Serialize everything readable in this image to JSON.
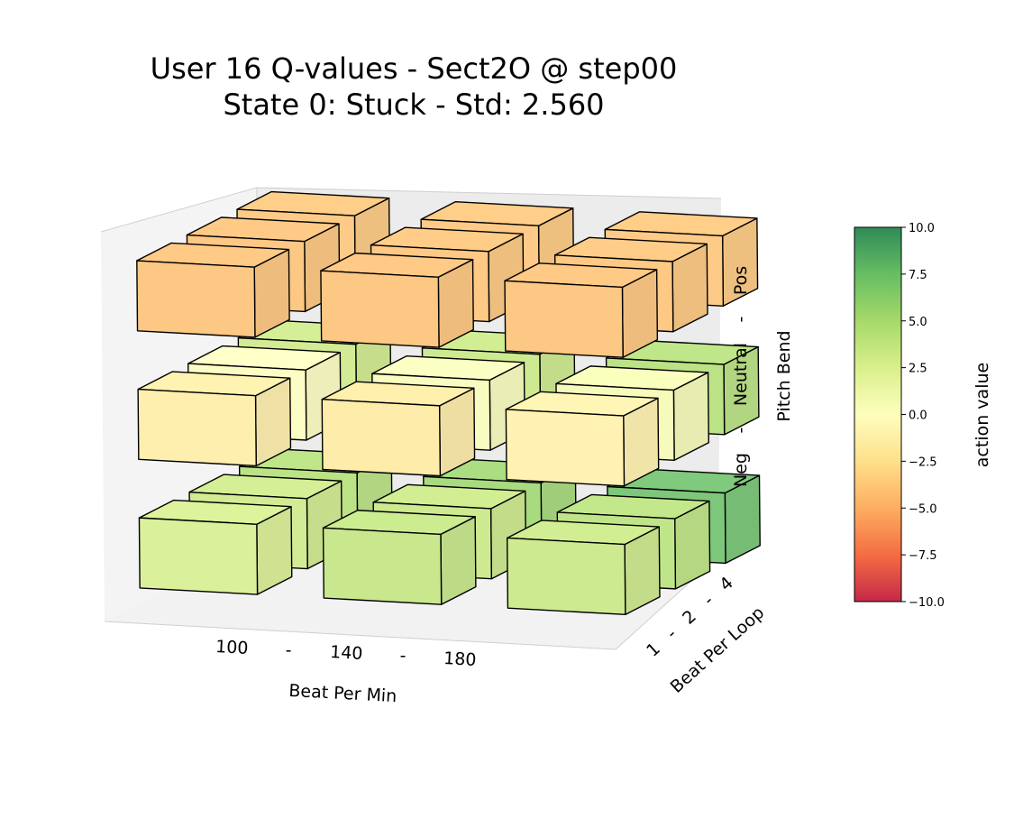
{
  "chart_data": {
    "type": "3d-bar",
    "title_line1": "User 16 Q-values  -  Sect2O @ step00",
    "title_line2": "State 0: Stuck  -  Std: 2.560",
    "xlabel": "Beat Per Min",
    "ylabel": "Beat Per Loop",
    "zlabel": "Pitch Bend",
    "x_ticks": [
      "100",
      "-",
      "140",
      "-",
      "180"
    ],
    "y_ticks": [
      "1",
      "-",
      "2",
      "-",
      "4"
    ],
    "z_ticks": [
      "Neg",
      "-",
      "Neutral",
      "-",
      "Pos"
    ],
    "x_categories": [
      "100",
      "140",
      "180"
    ],
    "y_categories": [
      "1",
      "2",
      "4"
    ],
    "z_categories": [
      "Neg",
      "Neutral",
      "Pos"
    ],
    "colorbar": {
      "label": "action value",
      "colormap": "RdYlGn",
      "range": [
        -10.0,
        10.0
      ],
      "ticks": [
        "10.0",
        "7.5",
        "5.0",
        "2.5",
        "0.0",
        "−2.5",
        "−5.0",
        "−7.5",
        "−10.0"
      ],
      "tick_values": [
        10.0,
        7.5,
        5.0,
        2.5,
        0.0,
        -2.5,
        -5.0,
        -7.5,
        -10.0
      ]
    },
    "cells": [
      {
        "bpm": "100",
        "bpl": "1",
        "pitch": "Neg",
        "value": 2.2
      },
      {
        "bpm": "100",
        "bpl": "2",
        "pitch": "Neg",
        "value": 2.6
      },
      {
        "bpm": "100",
        "bpl": "4",
        "pitch": "Neg",
        "value": 3.6
      },
      {
        "bpm": "140",
        "bpl": "1",
        "pitch": "Neg",
        "value": 3.0
      },
      {
        "bpm": "140",
        "bpl": "2",
        "pitch": "Neg",
        "value": 2.8
      },
      {
        "bpm": "140",
        "bpl": "4",
        "pitch": "Neg",
        "value": 4.4
      },
      {
        "bpm": "180",
        "bpl": "1",
        "pitch": "Neg",
        "value": 2.8
      },
      {
        "bpm": "180",
        "bpl": "2",
        "pitch": "Neg",
        "value": 3.4
      },
      {
        "bpm": "180",
        "bpl": "4",
        "pitch": "Neg",
        "value": 6.0
      },
      {
        "bpm": "100",
        "bpl": "1",
        "pitch": "Neutral",
        "value": -1.2
      },
      {
        "bpm": "100",
        "bpl": "2",
        "pitch": "Neutral",
        "value": 0.2
      },
      {
        "bpm": "100",
        "bpl": "4",
        "pitch": "Neutral",
        "value": 2.6
      },
      {
        "bpm": "140",
        "bpl": "1",
        "pitch": "Neutral",
        "value": -1.4
      },
      {
        "bpm": "140",
        "bpl": "2",
        "pitch": "Neutral",
        "value": 0.4
      },
      {
        "bpm": "140",
        "bpl": "4",
        "pitch": "Neutral",
        "value": 2.8
      },
      {
        "bpm": "180",
        "bpl": "1",
        "pitch": "Neutral",
        "value": -1.0
      },
      {
        "bpm": "180",
        "bpl": "2",
        "pitch": "Neutral",
        "value": 0.6
      },
      {
        "bpm": "180",
        "bpl": "4",
        "pitch": "Neutral",
        "value": 3.6
      },
      {
        "bpm": "100",
        "bpl": "1",
        "pitch": "Pos",
        "value": -3.4
      },
      {
        "bpm": "100",
        "bpl": "2",
        "pitch": "Pos",
        "value": -3.4
      },
      {
        "bpm": "100",
        "bpl": "4",
        "pitch": "Pos",
        "value": -3.2
      },
      {
        "bpm": "140",
        "bpl": "1",
        "pitch": "Pos",
        "value": -3.4
      },
      {
        "bpm": "140",
        "bpl": "2",
        "pitch": "Pos",
        "value": -3.3
      },
      {
        "bpm": "140",
        "bpl": "4",
        "pitch": "Pos",
        "value": -3.2
      },
      {
        "bpm": "180",
        "bpl": "1",
        "pitch": "Pos",
        "value": -3.4
      },
      {
        "bpm": "180",
        "bpl": "2",
        "pitch": "Pos",
        "value": -3.3
      },
      {
        "bpm": "180",
        "bpl": "4",
        "pitch": "Pos",
        "value": -3.2
      }
    ]
  }
}
